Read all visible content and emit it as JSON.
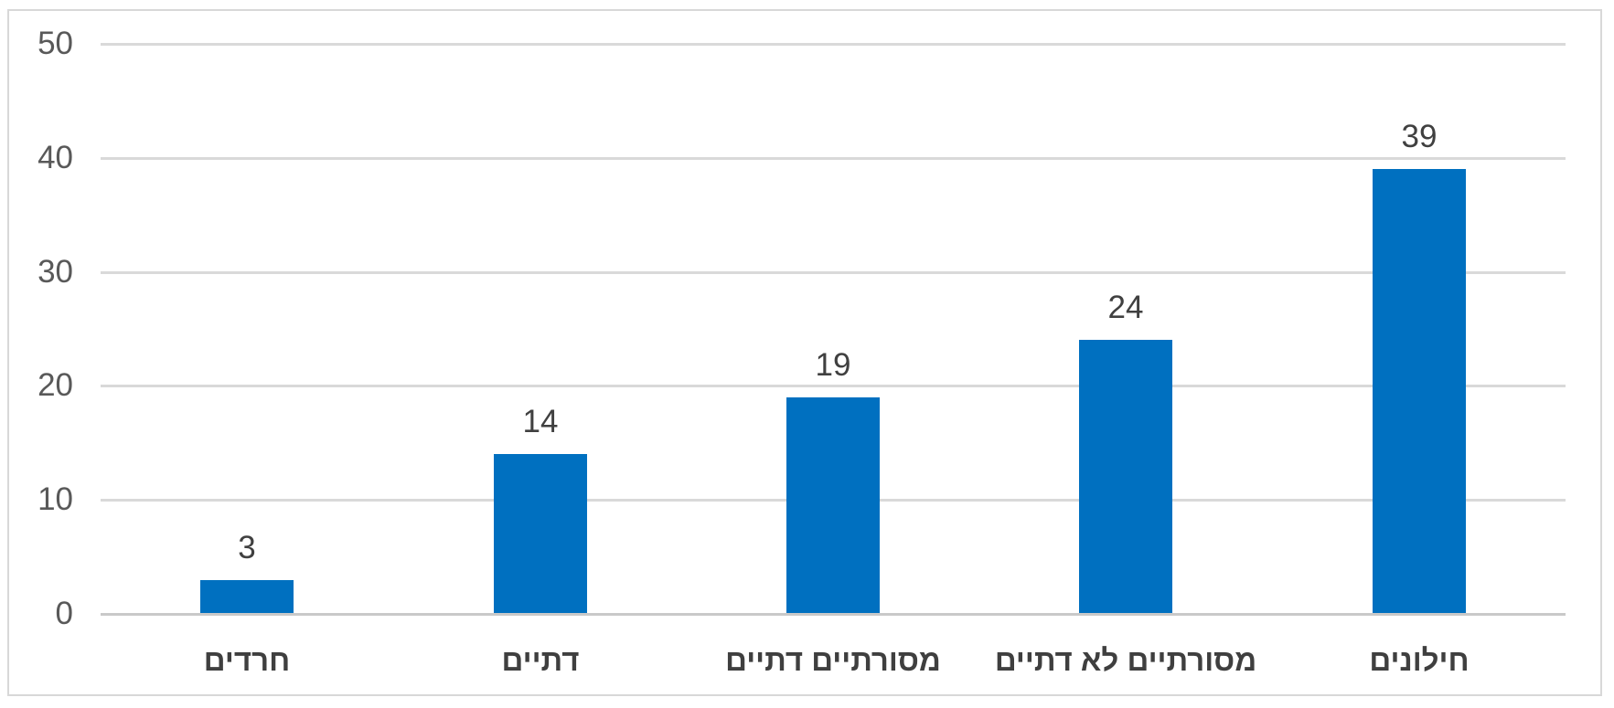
{
  "chart_data": {
    "type": "bar",
    "title": "",
    "xlabel": "",
    "ylabel": "",
    "categories": [
      "חרדים",
      "דתיים",
      "מסורתיים דתיים",
      "מסורתיים לא דתיים",
      "חילונים"
    ],
    "values": [
      3,
      14,
      19,
      24,
      39
    ],
    "data_labels": [
      "3",
      "14",
      "19",
      "24",
      "39"
    ],
    "yticks": [
      "0",
      "10",
      "20",
      "30",
      "40",
      "50"
    ],
    "ytick_values": [
      0,
      10,
      20,
      30,
      40,
      50
    ],
    "ylim": [
      0,
      50
    ],
    "grid": true,
    "legend_position": "none",
    "direction": "rtl",
    "colors": {
      "bar": "#0070c0",
      "gridline": "#d9d9d9",
      "baseline": "#c9c9c9",
      "axis_tick_label": "#595959",
      "data_label": "#404040",
      "category_label": "#3f3f3f",
      "frame_border": "#d8d8d8",
      "background": "#ffffff"
    }
  }
}
